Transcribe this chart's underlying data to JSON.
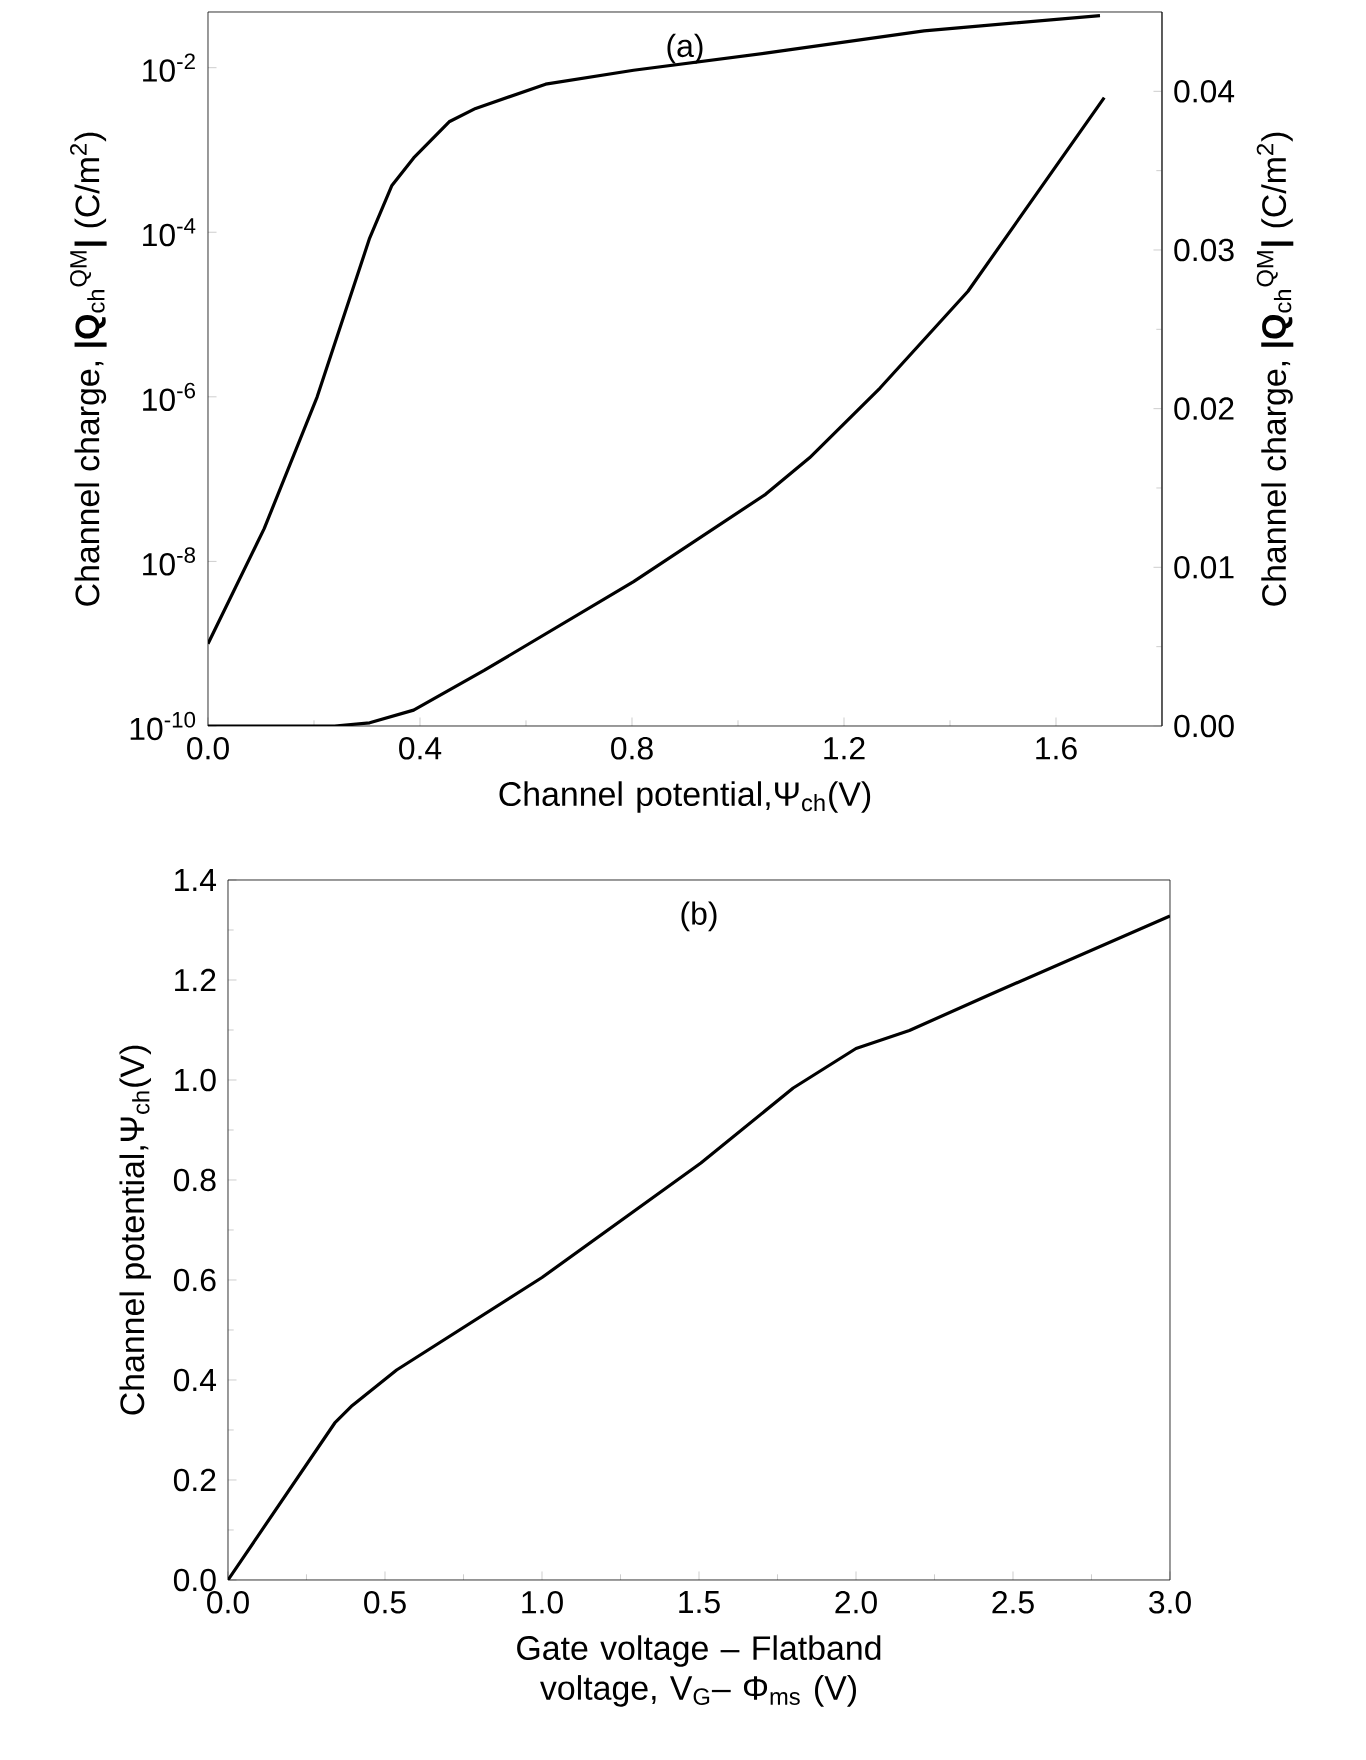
{
  "chart_data": [
    {
      "type": "line",
      "xlabel": "Channel potential,Ψ$_{ch}$(V)",
      "ylabel": "Channel charge, **|Q**$_{ch}$$^{QM}$**|** (C/m$^{2}$)",
      "y2label": "Channel charge, **|Q**$_{ch}$$^{QM}$**|** (C/m$^{2}$)",
      "annotations": [
        "(a)"
      ],
      "log": "y",
      "xlim": [
        0,
        1.8
      ],
      "xticks": [
        {
          "value": 0,
          "label": "0.0"
        },
        0.4,
        0.8,
        1.2,
        1.6
      ],
      "ylim": [
        1e-10,
        0.0475
      ],
      "yticks": [
        {
          "value": 1e-10,
          "label": "10$^{-10}$"
        },
        {
          "value": 1e-08,
          "label": "10$^{-8}$"
        },
        {
          "value": 1e-06,
          "label": "10$^{-6}$"
        },
        {
          "value": 0.0001,
          "label": "10$^{-4}$"
        },
        {
          "value": 0.01,
          "label": "10$^{-2}$"
        }
      ],
      "y2lim": [
        0,
        0.045
      ],
      "y2ticks": [
        {
          "value": 0,
          "label": "0.00"
        },
        0.01,
        0.02,
        0.03,
        0.04
      ],
      "series": [
        {
          "color": "#000000",
          "x": [
            0,
            0.106,
            0.206,
            0.305,
            0.347,
            0.388,
            0.455,
            0.505,
            0.637,
            0.803,
            1.052,
            1.351,
            1.683
          ],
          "values": [
            1e-09,
            2.5e-08,
            1e-06,
            8.5e-05,
            0.00037,
            0.0008,
            0.0022,
            0.0032,
            0.0063,
            0.0093,
            0.015,
            0.028,
            0.043
          ]
        },
        {
          "color": "#000000",
          "axis": "y2",
          "x": [
            0,
            0.239,
            0.305,
            0.388,
            0.521,
            0.803,
            1.052,
            1.135,
            1.268,
            1.434,
            1.691
          ],
          "values": [
            0,
            0,
            0.0002,
            0.001,
            0.0035,
            0.0091,
            0.0146,
            0.0169,
            0.0213,
            0.0274,
            0.0396
          ]
        }
      ]
    },
    {
      "type": "line",
      "xlabel": "Gate voltage – Flatband voltage, V$_{G}$– Φ$_{ms}$ (V)",
      "ylabel": "Channel potential,Ψ$_{ch}$(V)",
      "annotations": [
        "(b)"
      ],
      "xlim": [
        0,
        3
      ],
      "xticks": [
        {
          "value": 0,
          "label": "0.0"
        },
        0.5,
        {
          "value": 1,
          "label": "1.0"
        },
        1.5,
        {
          "value": 2,
          "label": "2.0"
        },
        2.5,
        {
          "value": 3,
          "label": "3.0"
        }
      ],
      "ylim": [
        0,
        1.4
      ],
      "yticks": [
        {
          "value": 0,
          "label": "0.0"
        },
        0.2,
        0.4,
        0.6,
        0.8,
        {
          "value": 1,
          "label": "1.0"
        },
        1.2,
        1.4
      ],
      "series": [
        {
          "color": "#000000",
          "x": [
            0,
            0.34,
            0.396,
            0.537,
            1.0,
            1.506,
            1.8,
            2.0,
            2.17,
            2.42,
            3.0
          ],
          "values": [
            0,
            0.314,
            0.349,
            0.42,
            0.605,
            0.834,
            0.984,
            1.063,
            1.099,
            1.169,
            1.328
          ]
        }
      ]
    }
  ]
}
